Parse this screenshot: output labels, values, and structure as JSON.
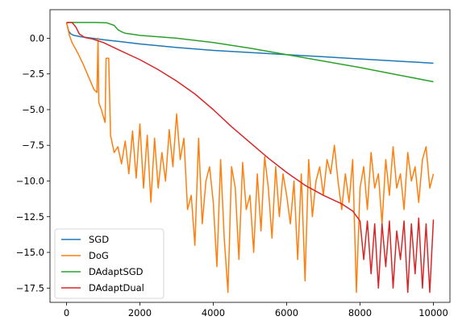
{
  "chart_data": {
    "type": "line",
    "xlim": [
      -450,
      10450
    ],
    "ylim": [
      -18.5,
      2.0
    ],
    "xticks": [
      0,
      2000,
      4000,
      6000,
      8000,
      10000
    ],
    "yticks": [
      0.0,
      -2.5,
      -5.0,
      -7.5,
      -10.0,
      -12.5,
      -15.0,
      -17.5
    ],
    "xtick_labels": [
      "0",
      "2000",
      "4000",
      "6000",
      "8000",
      "10000"
    ],
    "ytick_labels": [
      "0.0",
      "−2.5",
      "−5.0",
      "−7.5",
      "−10.0",
      "−12.5",
      "−15.0",
      "−17.5"
    ],
    "grid": false,
    "legend": {
      "placement": "lower-left"
    },
    "series": [
      {
        "name": "SGD",
        "color": "#1f77b4",
        "x": [
          0,
          60,
          120,
          200,
          400,
          700,
          1000,
          1500,
          2000,
          3000,
          4000,
          5000,
          6000,
          7000,
          8000,
          9000,
          10000
        ],
        "y": [
          1.1,
          0.5,
          0.3,
          0.2,
          0.1,
          0.0,
          -0.1,
          -0.25,
          -0.4,
          -0.65,
          -0.85,
          -1.0,
          -1.15,
          -1.3,
          -1.45,
          -1.6,
          -1.75
        ]
      },
      {
        "name": "DoG",
        "color": "#ff7f0e",
        "x": [
          0,
          80,
          150,
          300,
          450,
          600,
          750,
          830,
          860,
          880,
          950,
          1050,
          1080,
          1150,
          1200,
          1300,
          1400,
          1500,
          1600,
          1700,
          1800,
          1900,
          2000,
          2100,
          2200,
          2300,
          2400,
          2500,
          2600,
          2700,
          2800,
          2900,
          3000,
          3100,
          3200,
          3300,
          3400,
          3500,
          3600,
          3700,
          3800,
          3900,
          4000,
          4100,
          4200,
          4300,
          4400,
          4500,
          4600,
          4700,
          4800,
          4900,
          5000,
          5100,
          5200,
          5300,
          5400,
          5500,
          5600,
          5700,
          5800,
          5900,
          6000,
          6100,
          6200,
          6300,
          6400,
          6500,
          6600,
          6700,
          6800,
          6900,
          7000,
          7100,
          7200,
          7300,
          7400,
          7500,
          7600,
          7700,
          7800,
          7900,
          8000,
          8100,
          8200,
          8300,
          8400,
          8500,
          8600,
          8700,
          8800,
          8900,
          9000,
          9100,
          9200,
          9300,
          9400,
          9500,
          9600,
          9700,
          9800,
          9900,
          10000
        ],
        "y": [
          1.1,
          0.2,
          -0.3,
          -1.0,
          -1.8,
          -2.7,
          -3.6,
          -3.8,
          0.0,
          -4.5,
          -5.0,
          -5.9,
          -1.4,
          -1.4,
          -6.8,
          -8.0,
          -7.6,
          -8.8,
          -7.2,
          -9.5,
          -6.5,
          -9.8,
          -6.0,
          -10.5,
          -6.8,
          -11.5,
          -7.0,
          -10.5,
          -8.0,
          -10.0,
          -6.4,
          -9.0,
          -5.3,
          -8.5,
          -7.0,
          -12.0,
          -11.0,
          -14.5,
          -7.0,
          -13.0,
          -10.0,
          -9.0,
          -11.5,
          -16.0,
          -8.5,
          -14.0,
          -17.8,
          -9.0,
          -10.5,
          -15.5,
          -8.7,
          -12.0,
          -11.0,
          -15.0,
          -9.5,
          -13.5,
          -8.3,
          -10.5,
          -14.0,
          -9.0,
          -12.5,
          -9.5,
          -11.0,
          -13.0,
          -10.0,
          -15.5,
          -9.5,
          -17.0,
          -8.5,
          -12.5,
          -10.0,
          -9.0,
          -11.0,
          -8.5,
          -9.5,
          -7.5,
          -10.0,
          -12.0,
          -9.5,
          -11.5,
          -8.5,
          -17.8,
          -10.5,
          -9.0,
          -12.0,
          -8.0,
          -10.5,
          -9.5,
          -13.0,
          -8.5,
          -11.0,
          -7.6,
          -10.5,
          -9.5,
          -12.0,
          -8.0,
          -10.0,
          -9.0,
          -11.5,
          -8.5,
          -7.6,
          -10.5,
          -9.5
        ]
      },
      {
        "name": "DAdaptSGD",
        "color": "#2ca02c",
        "x": [
          0,
          200,
          400,
          800,
          1100,
          1300,
          1400,
          1500,
          1600,
          1800,
          2000,
          3000,
          4000,
          5000,
          6000,
          7000,
          8000,
          9000,
          10000
        ],
        "y": [
          1.1,
          1.1,
          1.1,
          1.1,
          1.08,
          0.9,
          0.6,
          0.45,
          0.35,
          0.28,
          0.2,
          0.0,
          -0.3,
          -0.7,
          -1.15,
          -1.6,
          -2.05,
          -2.55,
          -3.05
        ]
      },
      {
        "name": "DAdaptDual",
        "color": "#d62728",
        "x": [
          0,
          150,
          250,
          350,
          500,
          700,
          1000,
          1500,
          2000,
          2500,
          3000,
          3500,
          4000,
          4500,
          5000,
          5500,
          6000,
          6500,
          7000,
          7500,
          7800,
          8000,
          8100,
          8200,
          8300,
          8400,
          8500,
          8600,
          8700,
          8800,
          8900,
          9000,
          9100,
          9200,
          9300,
          9400,
          9500,
          9600,
          9700,
          9800,
          9900,
          10000
        ],
        "y": [
          1.1,
          1.1,
          0.8,
          0.3,
          0.05,
          -0.05,
          -0.3,
          -0.9,
          -1.5,
          -2.2,
          -3.0,
          -3.9,
          -5.0,
          -6.2,
          -7.3,
          -8.4,
          -9.4,
          -10.3,
          -11.0,
          -11.6,
          -12.1,
          -12.8,
          -15.5,
          -12.8,
          -16.5,
          -13.0,
          -17.5,
          -13.0,
          -16.0,
          -12.8,
          -17.5,
          -13.5,
          -15.5,
          -12.8,
          -17.8,
          -13.0,
          -16.5,
          -12.6,
          -17.5,
          -13.0,
          -17.8,
          -12.7
        ]
      }
    ]
  }
}
